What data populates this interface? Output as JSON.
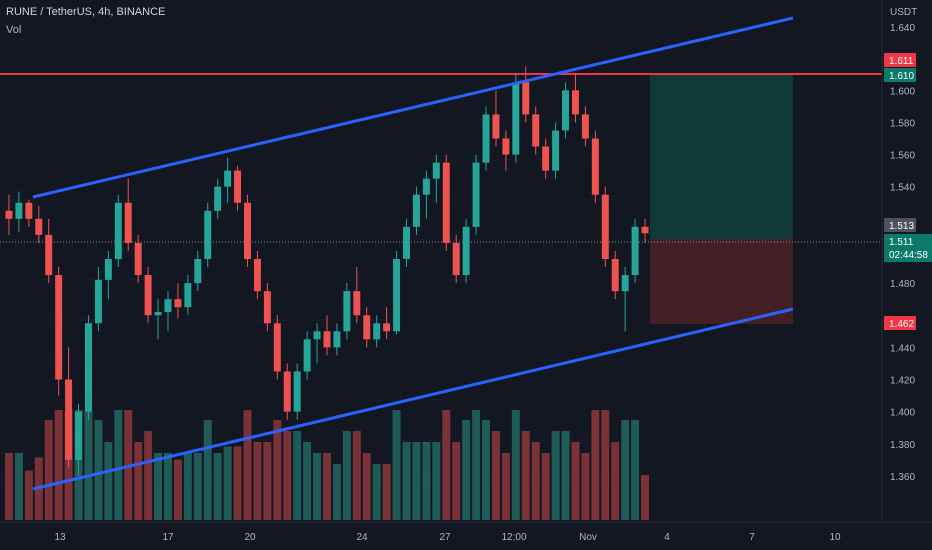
{
  "header": {
    "symbol": "RUNE / TetherUS, 4h, BINANCE",
    "volume_label": "Vol"
  },
  "price_axis": {
    "currency": "USDT",
    "top_label": "1.640",
    "labels": [
      "1.600",
      "1.580",
      "1.560",
      "1.540",
      "1.480",
      "1.440",
      "1.420",
      "1.400",
      "1.380",
      "1.360"
    ]
  },
  "tags": {
    "resistance": "1.611",
    "target": "1.610",
    "current_marker": "1.513",
    "last_price": "1.511",
    "countdown": "02:44:58",
    "stop": "1.462"
  },
  "time_axis": [
    "13",
    "17",
    "20",
    "24",
    "27",
    "12:00",
    "Nov",
    "4",
    "7",
    "10"
  ],
  "colors": {
    "background": "#131722",
    "up": "#26a69a",
    "down": "#ef5350",
    "trendline": "#2962ff",
    "resistance_line": "#f23645",
    "target_zone": "#0f3d38",
    "stop_zone": "#4a1f26"
  },
  "chart_data": {
    "type": "candlestick",
    "symbol": "RUNE/USDT",
    "interval": "4h",
    "ylim": [
      1.345,
      1.645
    ],
    "resistance": 1.611,
    "long_position": {
      "entry": 1.513,
      "target": 1.61,
      "stop": 1.462
    },
    "channel": {
      "upper": [
        {
          "x": "Oct 11",
          "y": 1.537
        },
        {
          "x": "Nov 8",
          "y": 1.64
        }
      ],
      "lower": [
        {
          "x": "Oct 11",
          "y": 1.364
        },
        {
          "x": "Nov 8",
          "y": 1.468
        }
      ]
    },
    "current_price": 1.511,
    "candles_ohlc": [
      [
        1.525,
        1.535,
        1.51,
        1.52
      ],
      [
        1.52,
        1.537,
        1.512,
        1.53
      ],
      [
        1.53,
        1.532,
        1.515,
        1.52
      ],
      [
        1.52,
        1.528,
        1.505,
        1.51
      ],
      [
        1.51,
        1.52,
        1.48,
        1.485
      ],
      [
        1.485,
        1.49,
        1.41,
        1.42
      ],
      [
        1.42,
        1.44,
        1.365,
        1.37
      ],
      [
        1.37,
        1.405,
        1.36,
        1.4
      ],
      [
        1.4,
        1.46,
        1.395,
        1.455
      ],
      [
        1.455,
        1.49,
        1.45,
        1.482
      ],
      [
        1.482,
        1.5,
        1.47,
        1.495
      ],
      [
        1.495,
        1.535,
        1.49,
        1.53
      ],
      [
        1.53,
        1.545,
        1.5,
        1.505
      ],
      [
        1.505,
        1.51,
        1.48,
        1.485
      ],
      [
        1.485,
        1.49,
        1.455,
        1.46
      ],
      [
        1.46,
        1.47,
        1.445,
        1.462
      ],
      [
        1.462,
        1.475,
        1.45,
        1.47
      ],
      [
        1.47,
        1.48,
        1.458,
        1.465
      ],
      [
        1.465,
        1.485,
        1.46,
        1.48
      ],
      [
        1.48,
        1.5,
        1.475,
        1.495
      ],
      [
        1.495,
        1.53,
        1.49,
        1.525
      ],
      [
        1.525,
        1.545,
        1.52,
        1.54
      ],
      [
        1.54,
        1.558,
        1.53,
        1.55
      ],
      [
        1.55,
        1.553,
        1.525,
        1.53
      ],
      [
        1.53,
        1.535,
        1.49,
        1.495
      ],
      [
        1.495,
        1.5,
        1.47,
        1.475
      ],
      [
        1.475,
        1.48,
        1.45,
        1.455
      ],
      [
        1.455,
        1.46,
        1.42,
        1.425
      ],
      [
        1.425,
        1.43,
        1.395,
        1.4
      ],
      [
        1.4,
        1.43,
        1.395,
        1.425
      ],
      [
        1.425,
        1.45,
        1.42,
        1.445
      ],
      [
        1.445,
        1.455,
        1.43,
        1.45
      ],
      [
        1.45,
        1.46,
        1.435,
        1.44
      ],
      [
        1.44,
        1.455,
        1.435,
        1.45
      ],
      [
        1.45,
        1.48,
        1.445,
        1.475
      ],
      [
        1.475,
        1.49,
        1.455,
        1.46
      ],
      [
        1.46,
        1.465,
        1.44,
        1.445
      ],
      [
        1.445,
        1.46,
        1.44,
        1.455
      ],
      [
        1.455,
        1.465,
        1.445,
        1.45
      ],
      [
        1.45,
        1.5,
        1.448,
        1.495
      ],
      [
        1.495,
        1.52,
        1.49,
        1.515
      ],
      [
        1.515,
        1.54,
        1.51,
        1.535
      ],
      [
        1.535,
        1.55,
        1.52,
        1.545
      ],
      [
        1.545,
        1.56,
        1.53,
        1.555
      ],
      [
        1.555,
        1.56,
        1.5,
        1.505
      ],
      [
        1.505,
        1.51,
        1.48,
        1.485
      ],
      [
        1.485,
        1.52,
        1.48,
        1.515
      ],
      [
        1.515,
        1.56,
        1.51,
        1.555
      ],
      [
        1.555,
        1.59,
        1.55,
        1.585
      ],
      [
        1.585,
        1.6,
        1.565,
        1.57
      ],
      [
        1.57,
        1.575,
        1.55,
        1.56
      ],
      [
        1.56,
        1.61,
        1.555,
        1.605
      ],
      [
        1.605,
        1.615,
        1.58,
        1.585
      ],
      [
        1.585,
        1.59,
        1.56,
        1.565
      ],
      [
        1.565,
        1.57,
        1.545,
        1.55
      ],
      [
        1.55,
        1.58,
        1.545,
        1.575
      ],
      [
        1.575,
        1.605,
        1.57,
        1.6
      ],
      [
        1.6,
        1.61,
        1.58,
        1.585
      ],
      [
        1.585,
        1.59,
        1.565,
        1.57
      ],
      [
        1.57,
        1.575,
        1.53,
        1.535
      ],
      [
        1.535,
        1.54,
        1.49,
        1.495
      ],
      [
        1.495,
        1.5,
        1.47,
        1.475
      ],
      [
        1.475,
        1.49,
        1.45,
        1.485
      ],
      [
        1.485,
        1.52,
        1.48,
        1.515
      ],
      [
        1.515,
        1.52,
        1.505,
        1.511
      ]
    ],
    "volume_max_share": 1.0
  }
}
